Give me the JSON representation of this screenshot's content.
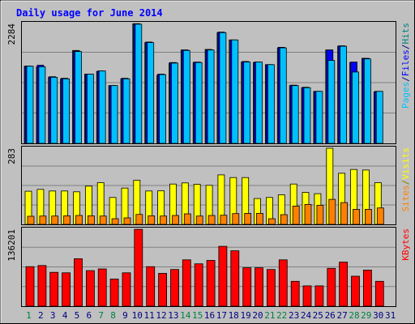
{
  "chart_data": {
    "type": "bar",
    "title": "Daily usage for June 2014",
    "days": [
      1,
      2,
      3,
      4,
      5,
      6,
      7,
      8,
      9,
      10,
      11,
      12,
      13,
      14,
      15,
      16,
      17,
      18,
      19,
      20,
      21,
      22,
      23,
      24,
      25,
      26,
      27,
      28,
      29,
      30,
      31
    ],
    "weekend_days": [
      1,
      7,
      8,
      14,
      15,
      21,
      22,
      28,
      29
    ],
    "panels": {
      "top": {
        "max_label": "2284",
        "ymax": 2284,
        "axis_labels": [
          {
            "text": "Pages",
            "color": "#00c0ff"
          },
          {
            "text": "/",
            "color": "#000080"
          },
          {
            "text": "Files",
            "color": "#0000ff"
          },
          {
            "text": "/",
            "color": "#000080"
          },
          {
            "text": "Hits",
            "color": "#008080"
          }
        ],
        "series": [
          {
            "name": "Hits",
            "color": "#008080",
            "values": [
              1470,
              1460,
              1260,
              1230,
              1770,
              1320,
              1370,
              1100,
              1230,
              2280,
              1920,
              1300,
              1530,
              1780,
              1540,
              1790,
              2110,
              1970,
              1550,
              1540,
              1500,
              1820,
              1100,
              1060,
              990,
              1780,
              1850,
              1540,
              1620,
              980,
              null
            ]
          },
          {
            "name": "Files",
            "color": "#0000ff",
            "values": [
              1470,
              1490,
              1270,
              1240,
              1760,
              1320,
              1380,
              1100,
              1240,
              2280,
              1930,
              1320,
              1540,
              1780,
              1550,
              1780,
              2120,
              1970,
              1560,
              1550,
              1500,
              1830,
              1110,
              1070,
              990,
              1780,
              1860,
              1550,
              1620,
              990,
              null
            ]
          },
          {
            "name": "Pages",
            "color": "#00c0ff",
            "values": [
              1470,
              1460,
              1260,
              1230,
              1750,
              1320,
              1380,
              1100,
              1230,
              2270,
              1920,
              1310,
              1530,
              1770,
              1540,
              1780,
              2110,
              1970,
              1550,
              1550,
              1500,
              1820,
              1100,
              1060,
              990,
              1580,
              1850,
              1360,
              1610,
              990,
              null
            ]
          }
        ]
      },
      "middle": {
        "max_label": "283",
        "ymax": 283,
        "axis_labels": [
          {
            "text": "Sites",
            "color": "#ff8000"
          },
          {
            "text": "/",
            "color": "#808000"
          },
          {
            "text": "Visits",
            "color": "#ffff00"
          }
        ],
        "series": [
          {
            "name": "Visits",
            "color": "#ffff00",
            "values": [
              123,
              130,
              124,
              124,
              121,
              142,
              155,
              100,
              135,
              164,
              124,
              125,
              150,
              154,
              149,
              145,
              184,
              174,
              174,
              96,
              100,
              110,
              150,
              119,
              114,
              283,
              190,
              204,
              202,
              155,
              null
            ]
          },
          {
            "name": "Sites",
            "color": "#ff8000",
            "values": [
              30,
              31,
              31,
              32,
              33,
              32,
              31,
              21,
              24,
              37,
              32,
              31,
              33,
              39,
              31,
              33,
              34,
              40,
              41,
              41,
              21,
              36,
              68,
              74,
              71,
              93,
              81,
              56,
              56,
              61,
              null
            ]
          }
        ]
      },
      "bottom": {
        "max_label": "136201",
        "ymax": 136201,
        "axis_labels": [
          {
            "text": "KBytes",
            "color": "#ff0000"
          }
        ],
        "series": [
          {
            "name": "KBytes",
            "color": "#ff0000",
            "values": [
              70000,
              72000,
              60000,
              59000,
              84000,
              63000,
              66000,
              48000,
              59000,
              136000,
              70000,
              58000,
              65000,
              82000,
              75000,
              81000,
              106000,
              98000,
              68000,
              68000,
              65000,
              82000,
              44000,
              36000,
              36000,
              67000,
              78000,
              53000,
              64000,
              44000,
              null
            ]
          }
        ]
      }
    }
  }
}
